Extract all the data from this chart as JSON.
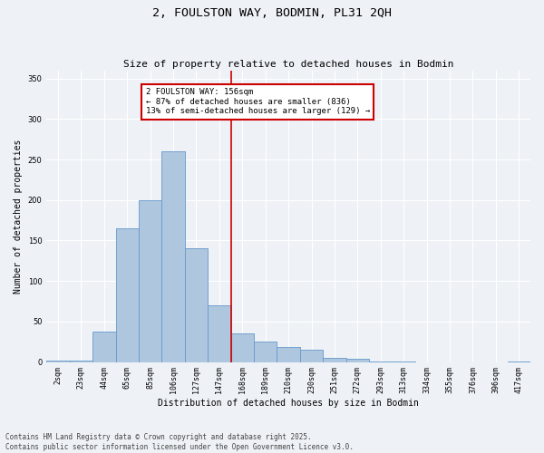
{
  "title": "2, FOULSTON WAY, BODMIN, PL31 2QH",
  "subtitle": "Size of property relative to detached houses in Bodmin",
  "xlabel": "Distribution of detached houses by size in Bodmin",
  "ylabel": "Number of detached properties",
  "categories": [
    "2sqm",
    "23sqm",
    "44sqm",
    "65sqm",
    "85sqm",
    "106sqm",
    "127sqm",
    "147sqm",
    "168sqm",
    "189sqm",
    "210sqm",
    "230sqm",
    "251sqm",
    "272sqm",
    "293sqm",
    "313sqm",
    "334sqm",
    "355sqm",
    "376sqm",
    "396sqm",
    "417sqm"
  ],
  "values": [
    2,
    2,
    38,
    165,
    200,
    260,
    140,
    70,
    35,
    25,
    19,
    15,
    5,
    4,
    1,
    1,
    0,
    0,
    0,
    0,
    1
  ],
  "bar_color": "#aec6de",
  "bar_edge_color": "#6699cc",
  "property_line_x": 7.5,
  "annotation_line1": "2 FOULSTON WAY: 156sqm",
  "annotation_line2": "← 87% of detached houses are smaller (836)",
  "annotation_line3": "13% of semi-detached houses are larger (129) →",
  "annotation_box_color": "#cc0000",
  "vline_color": "#cc0000",
  "ylim": [
    0,
    360
  ],
  "yticks": [
    0,
    50,
    100,
    150,
    200,
    250,
    300,
    350
  ],
  "bg_color": "#eef2f7",
  "footer_line1": "Contains HM Land Registry data © Crown copyright and database right 2025.",
  "footer_line2": "Contains public sector information licensed under the Open Government Licence v3.0.",
  "title_fontsize": 9.5,
  "subtitle_fontsize": 8,
  "label_fontsize": 7,
  "tick_fontsize": 6,
  "annotation_fontsize": 6.5,
  "footer_fontsize": 5.5
}
